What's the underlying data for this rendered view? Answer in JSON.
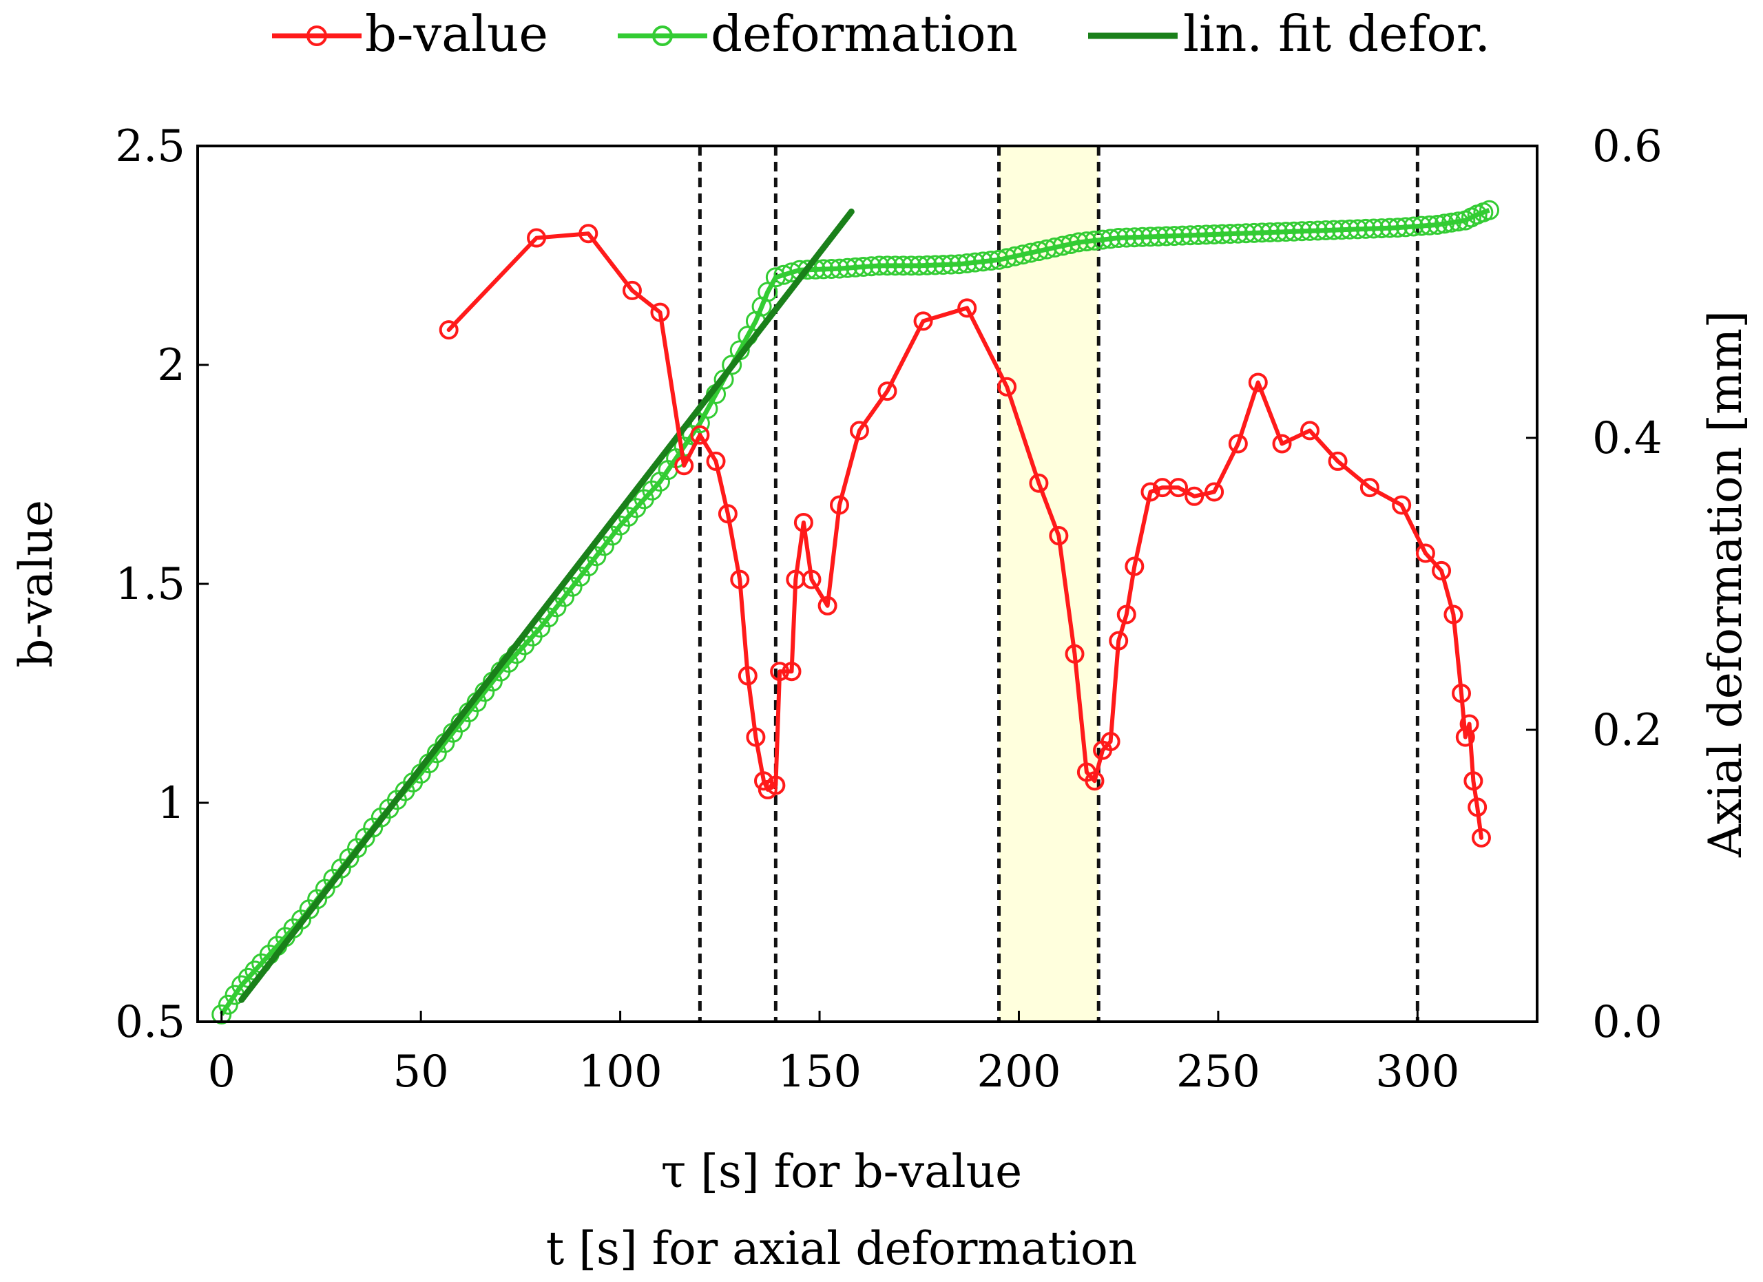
{
  "chart_data": {
    "type": "line",
    "title": "",
    "x_axis": {
      "label_line1": "τ [s] for b-value",
      "label_line2": "t [s] for axial deformation",
      "range": [
        -6,
        330
      ],
      "ticks": [
        0,
        50,
        100,
        150,
        200,
        250,
        300
      ],
      "tick_labels": [
        "0",
        "50",
        "100",
        "150",
        "200",
        "250",
        "300"
      ]
    },
    "y_left": {
      "label": "b-value",
      "range": [
        0.5,
        2.5
      ],
      "ticks": [
        0.5,
        1,
        1.5,
        2,
        2.5
      ],
      "tick_labels": [
        "0.5",
        "1",
        "1.5",
        "2",
        "2.5"
      ]
    },
    "y_right": {
      "label": "Axial deformation [mm]",
      "range": [
        0.0,
        0.6
      ],
      "ticks": [
        0.0,
        0.2,
        0.4,
        0.6
      ],
      "tick_labels": [
        "0.0",
        "0.2",
        "0.4",
        "0.6"
      ]
    },
    "legend": {
      "position": "top",
      "entries": [
        {
          "label": "b-value",
          "color": "#ff1a1a",
          "marker": "circle"
        },
        {
          "label": "deformation",
          "color": "#33cc33",
          "marker": "circle"
        },
        {
          "label": "lin. fit defor.",
          "color": "#1a801a",
          "marker": "none"
        }
      ]
    },
    "vertical_lines": [
      120,
      139,
      195,
      220,
      300
    ],
    "shaded_band": {
      "from": 195,
      "to": 220,
      "color": "#ffffdd"
    },
    "series": [
      {
        "name": "b-value",
        "axis": "left",
        "color": "#ff1a1a",
        "x": [
          57,
          79,
          92,
          103,
          110,
          116,
          120,
          124,
          127,
          130,
          132,
          134,
          136,
          137,
          139,
          140,
          143,
          144,
          146,
          148,
          152,
          155,
          160,
          167,
          176,
          187,
          197,
          205,
          210,
          214,
          217,
          219,
          221,
          223,
          225,
          227,
          229,
          233,
          236,
          240,
          244,
          249,
          255,
          260,
          266,
          273,
          280,
          288,
          296,
          302,
          306,
          309,
          311,
          312,
          313,
          314,
          315,
          316
        ],
        "values": [
          2.08,
          2.29,
          2.3,
          2.17,
          2.12,
          1.77,
          1.84,
          1.78,
          1.66,
          1.51,
          1.29,
          1.15,
          1.05,
          1.03,
          1.04,
          1.3,
          1.3,
          1.51,
          1.64,
          1.51,
          1.45,
          1.68,
          1.85,
          1.94,
          2.1,
          2.13,
          1.95,
          1.73,
          1.61,
          1.34,
          1.07,
          1.05,
          1.12,
          1.14,
          1.37,
          1.43,
          1.54,
          1.71,
          1.72,
          1.72,
          1.7,
          1.71,
          1.82,
          1.96,
          1.82,
          1.85,
          1.78,
          1.72,
          1.68,
          1.57,
          1.53,
          1.43,
          1.25,
          1.15,
          1.18,
          1.05,
          0.99,
          0.92
        ]
      },
      {
        "name": "deformation",
        "axis": "right",
        "color": "#33cc33",
        "x": [
          0,
          5,
          10,
          20,
          30,
          40,
          50,
          60,
          70,
          80,
          90,
          100,
          110,
          120,
          128,
          134,
          137,
          139,
          145,
          155,
          165,
          175,
          185,
          195,
          205,
          215,
          225,
          235,
          245,
          255,
          265,
          275,
          285,
          295,
          305,
          312,
          315,
          318
        ],
        "values": [
          0.005,
          0.025,
          0.04,
          0.07,
          0.105,
          0.14,
          0.17,
          0.205,
          0.24,
          0.27,
          0.305,
          0.34,
          0.37,
          0.41,
          0.45,
          0.48,
          0.5,
          0.51,
          0.515,
          0.516,
          0.518,
          0.518,
          0.519,
          0.522,
          0.528,
          0.534,
          0.537,
          0.538,
          0.539,
          0.54,
          0.541,
          0.542,
          0.543,
          0.544,
          0.546,
          0.549,
          0.553,
          0.556
        ]
      },
      {
        "name": "lin. fit defor.",
        "axis": "right",
        "color": "#1a801a",
        "x": [
          5,
          158
        ],
        "values": [
          0.015,
          0.555
        ]
      }
    ]
  }
}
